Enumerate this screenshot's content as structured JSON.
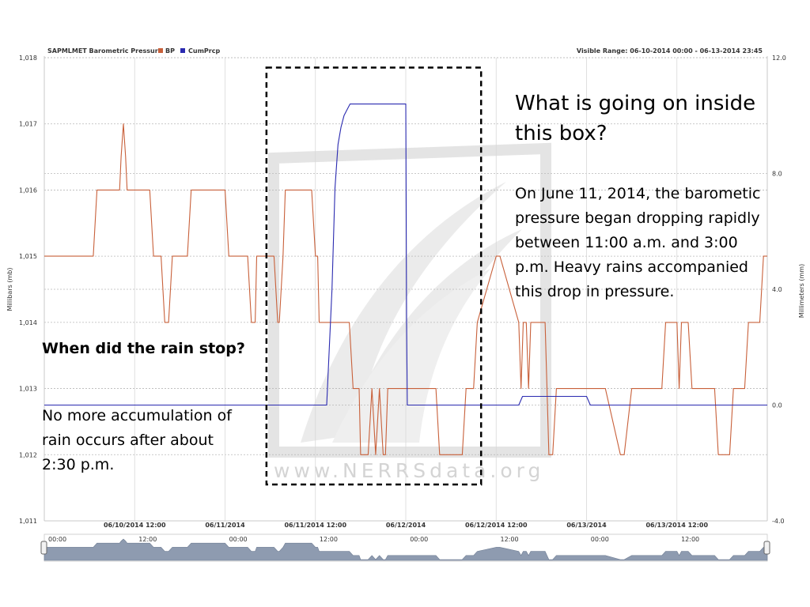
{
  "header": {
    "title": "SAPMLMET Barometric Pressure",
    "visible_range": "Visible Range: 06-10-2014 00:00 - 06-13-2014 23:45"
  },
  "watermark": "www.NERRSdata.org",
  "callouts": {
    "box_question": "What is going on inside this box?",
    "box_explanation": "On June 11, 2014, the barometic pressure began dropping rapidly between 11:00 a.m. and 3:00 p.m. Heavy rains accompanied this drop in pressure.",
    "rain_question": "When did the rain stop?",
    "rain_answer": "No more accumulation of rain occurs after about 2:30 p.m."
  },
  "colors": {
    "bp": "#c8603a",
    "cumprcp": "#2a2ab0",
    "box": "#000000",
    "grid": "#b8b8b8"
  },
  "navigator": {
    "labels": [
      "00:00",
      "12:00",
      "00:00",
      "12:00",
      "00:00",
      "12:00",
      "00:00",
      "12:00"
    ]
  },
  "chart_data": {
    "type": "line",
    "title": "SAPMLMET Barometric Pressure",
    "x_unit": "hours since 06/10/2014 00:00",
    "xlim": [
      0,
      96
    ],
    "x_ticks": [
      12,
      24,
      36,
      48,
      60,
      72,
      84
    ],
    "x_tick_labels": [
      "06/10/2014 12:00",
      "06/11/2014",
      "06/11/2014 12:00",
      "06/12/2014",
      "06/12/2014 12:00",
      "06/13/2014",
      "06/13/2014 12:00"
    ],
    "ylabel": "Millibars (mb)",
    "ylim": [
      1011,
      1018
    ],
    "y_ticks": [
      1011,
      1012,
      1013,
      1014,
      1015,
      1016,
      1017,
      1018
    ],
    "y_tick_labels": [
      "1,011",
      "1,012",
      "1,013",
      "1,014",
      "1,015",
      "1,016",
      "1,017",
      "1,018"
    ],
    "y2label": "Millimeters (mm)",
    "y2lim": [
      -4,
      12
    ],
    "y2_ticks": [
      -4,
      0,
      4,
      8,
      12
    ],
    "y2_tick_labels": [
      "-4.0",
      "0.0",
      "4.0",
      "8.0",
      "12.0"
    ],
    "series": [
      {
        "name": "BP",
        "axis": "left",
        "x": [
          0,
          6.5,
          7,
          10,
          10.2,
          10.5,
          10.8,
          11,
          14,
          14.5,
          15.5,
          16,
          16.5,
          17,
          19,
          19.5,
          20,
          24,
          24.5,
          27,
          27.5,
          28,
          28.2,
          28.7,
          29,
          30,
          30.5,
          31,
          31.2,
          31.7,
          32,
          35.5,
          36,
          36.3,
          36.5,
          36.8,
          37,
          40.5,
          41,
          41.8,
          42,
          43,
          43.5,
          44,
          44.5,
          45,
          45.3,
          45.6,
          46,
          46.5,
          47,
          47.3,
          47.7,
          48,
          48.5,
          49,
          52,
          52.5,
          55.5,
          56,
          57,
          57.5,
          60,
          60.5,
          63,
          63.3,
          63.6,
          64,
          64.3,
          64.6,
          65,
          66.5,
          67,
          67.5,
          68,
          69,
          69.5,
          70,
          74,
          74.5,
          76.5,
          77,
          78,
          78.5,
          79,
          82,
          82.5,
          84,
          84.3,
          84.6,
          85,
          85.5,
          86,
          89,
          89.5,
          91,
          91.5,
          93,
          93.5,
          95,
          95.5,
          96
        ],
        "y": [
          1015,
          1015,
          1016,
          1016,
          1016.5,
          1017,
          1016.5,
          1016,
          1016,
          1015,
          1015,
          1014,
          1014,
          1015,
          1015,
          1016,
          1016,
          1016,
          1015,
          1015,
          1014,
          1014,
          1015,
          1015,
          1015,
          1015,
          1015,
          1014,
          1014,
          1015,
          1016,
          1016,
          1015,
          1015,
          1014,
          1014,
          1014,
          1014,
          1013,
          1013,
          1012,
          1012,
          1013,
          1012,
          1013,
          1012,
          1012,
          1013,
          1013,
          1013,
          1013,
          1013,
          1013,
          1013,
          1013,
          1013,
          1013,
          1012,
          1012,
          1013,
          1013,
          1014,
          1015,
          1015,
          1014,
          1013,
          1014,
          1014,
          1013,
          1014,
          1014,
          1014,
          1012,
          1012,
          1013,
          1013,
          1013,
          1013,
          1013,
          1013,
          1012,
          1012,
          1013,
          1013,
          1013,
          1013,
          1014,
          1014,
          1013,
          1014,
          1014,
          1014,
          1013,
          1013,
          1012,
          1012,
          1013,
          1013,
          1014,
          1014,
          1015,
          1015
        ]
      },
      {
        "name": "CumPrcp",
        "axis": "right",
        "x": [
          0,
          37.5,
          38.2,
          38.6,
          39,
          39.4,
          39.8,
          40.2,
          40.6,
          41.2,
          42,
          48,
          48.1,
          48.2,
          63,
          63.5,
          72,
          72.5,
          96
        ],
        "y": [
          0,
          0,
          4,
          7.5,
          9,
          9.6,
          10,
          10.2,
          10.4,
          10.4,
          10.4,
          10.4,
          3,
          0,
          0,
          0.3,
          0.3,
          0,
          0
        ]
      }
    ],
    "annotation_box": {
      "x": [
        29.5,
        58
      ],
      "y": [
        1011.55,
        1017.85
      ],
      "style": "dashed"
    }
  }
}
